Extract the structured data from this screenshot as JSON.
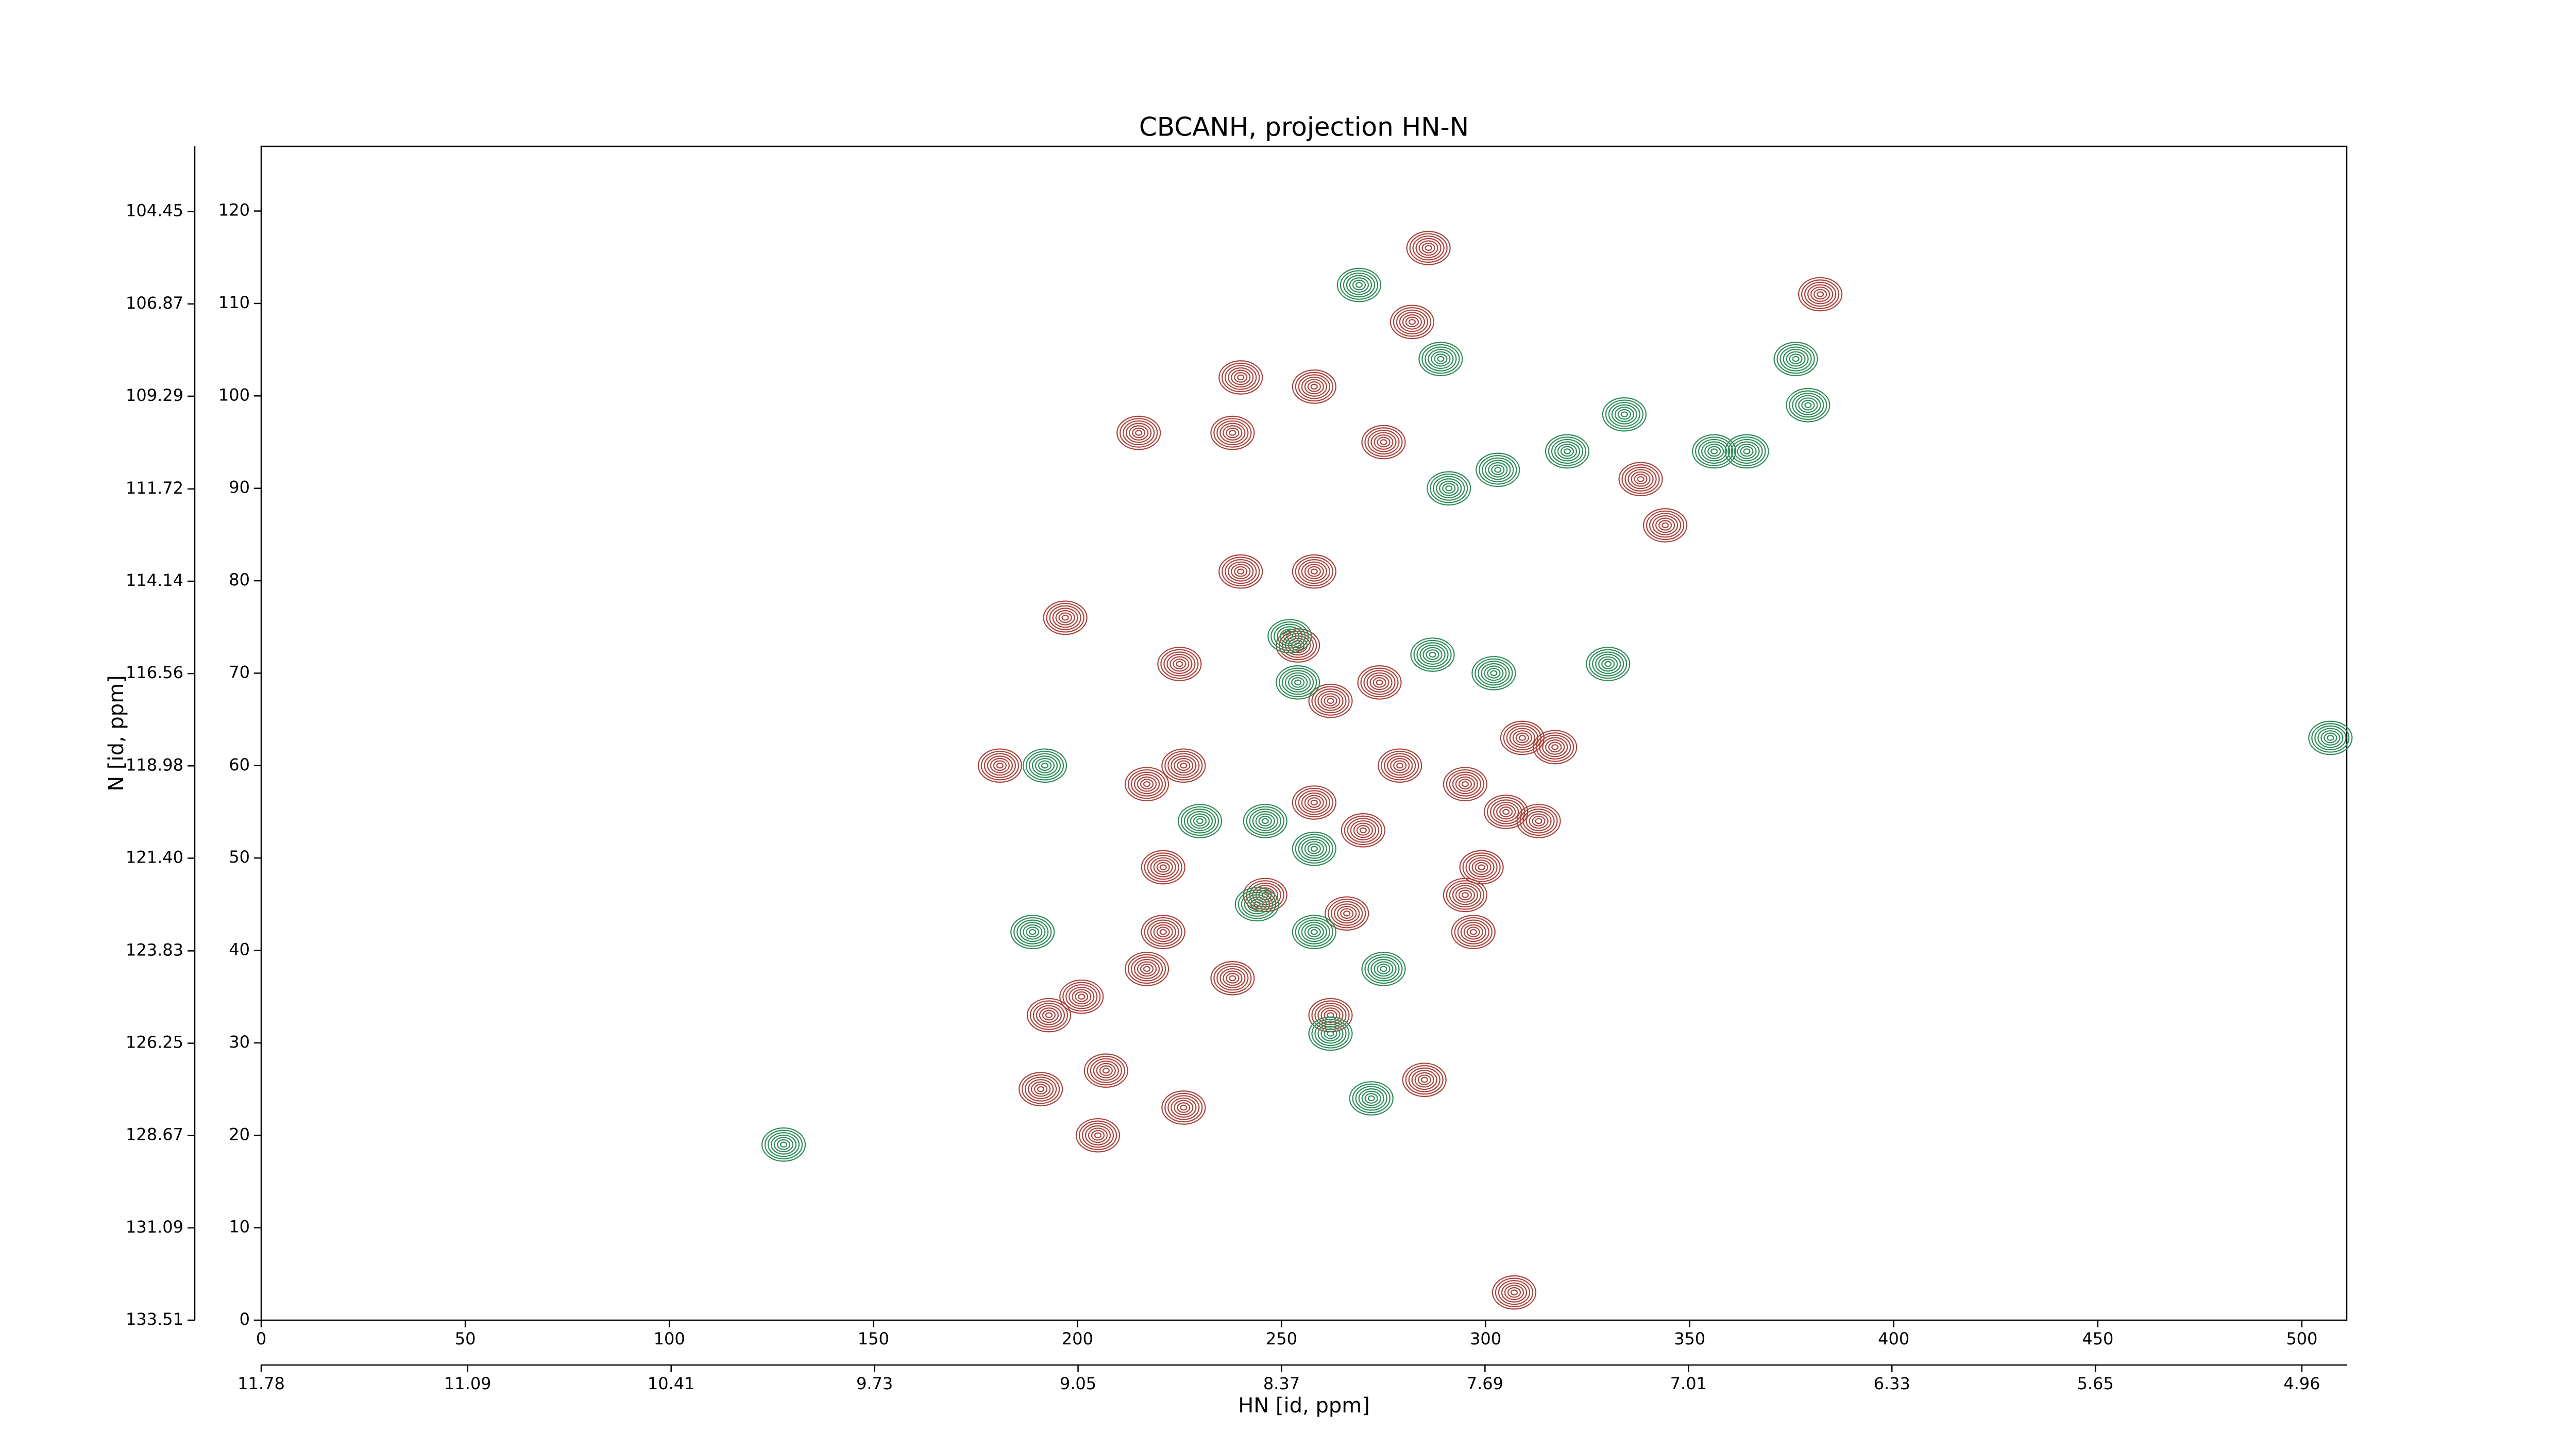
{
  "chart_data": {
    "type": "contour",
    "title": "CBCANH, projection HN-N",
    "xlabel": "HN [id, ppm]",
    "ylabel": "N [id, ppm]",
    "xlim": [
      0,
      511
    ],
    "xticks": [
      0,
      50,
      100,
      150,
      200,
      250,
      300,
      350,
      400,
      450,
      500
    ],
    "ylim": [
      0,
      127
    ],
    "yticks": [
      0,
      10,
      20,
      30,
      40,
      50,
      60,
      70,
      80,
      90,
      100,
      110,
      120
    ],
    "x2lim": [
      11.78,
      4.81
    ],
    "x2ticks": [
      11.78,
      11.09,
      10.41,
      9.73,
      9.05,
      8.37,
      7.69,
      7.01,
      6.33,
      5.65,
      4.96
    ],
    "y2lim": [
      133.51,
      102.74
    ],
    "y2ticks": [
      104.45,
      106.87,
      109.29,
      111.72,
      114.14,
      116.56,
      118.98,
      {
        "value": 121.4,
        "label": "121.40"
      },
      123.83,
      126.25,
      128.67,
      131.09,
      133.51
    ],
    "grid": false,
    "series": [
      {
        "color": "#a9433c",
        "x": [
          286,
          382,
          282,
          240,
          258,
          215,
          238,
          275,
          338,
          344,
          240,
          258,
          197,
          225,
          254,
          262,
          274,
          181,
          217,
          226,
          279,
          295,
          309,
          317,
          305,
          313,
          258,
          270,
          221,
          246,
          295,
          299,
          297,
          266,
          221,
          217,
          238,
          262,
          193,
          201,
          191,
          207,
          226,
          205,
          307,
          285
        ],
        "values": [
          116,
          111,
          108,
          102,
          101,
          96,
          96,
          95,
          91,
          86,
          81,
          81,
          76,
          71,
          73,
          67,
          69,
          60,
          58,
          60,
          60,
          58,
          63,
          62,
          55,
          54,
          56,
          53,
          49,
          46,
          46,
          49,
          42,
          44,
          42,
          38,
          37,
          33,
          33,
          35,
          25,
          27,
          23,
          20,
          3,
          26
        ]
      },
      {
        "color": "#2e8b57",
        "x": [
          269,
          289,
          320,
          334,
          356,
          364,
          379,
          376,
          303,
          291,
          254,
          287,
          302,
          330,
          252,
          192,
          246,
          258,
          230,
          189,
          244,
          258,
          262,
          272,
          128,
          507,
          275
        ],
        "values": [
          112,
          104,
          94,
          98,
          94,
          94,
          99,
          104,
          92,
          90,
          69,
          72,
          70,
          71,
          74,
          60,
          54,
          51,
          54,
          42,
          45,
          42,
          31,
          24,
          19,
          63,
          38
        ]
      }
    ]
  }
}
